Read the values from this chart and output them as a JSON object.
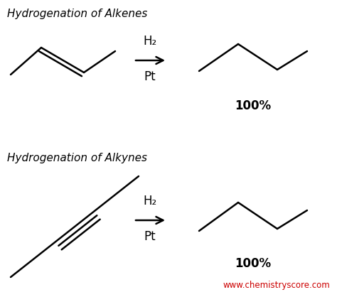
{
  "title1": "Hydrogenation of Alkenes",
  "title2": "Hydrogenation of Alkynes",
  "reagent_top": "H₂",
  "catalyst_top": "Pt",
  "reagent_bot": "H₂",
  "catalyst_bot": "Pt",
  "percent_top": "100%",
  "percent_bot": "100%",
  "website": "www.chemistryscore.com",
  "bg_color": "#ffffff",
  "line_color": "#000000",
  "text_color": "#000000",
  "website_color": "#cc0000",
  "line_width": 1.8
}
